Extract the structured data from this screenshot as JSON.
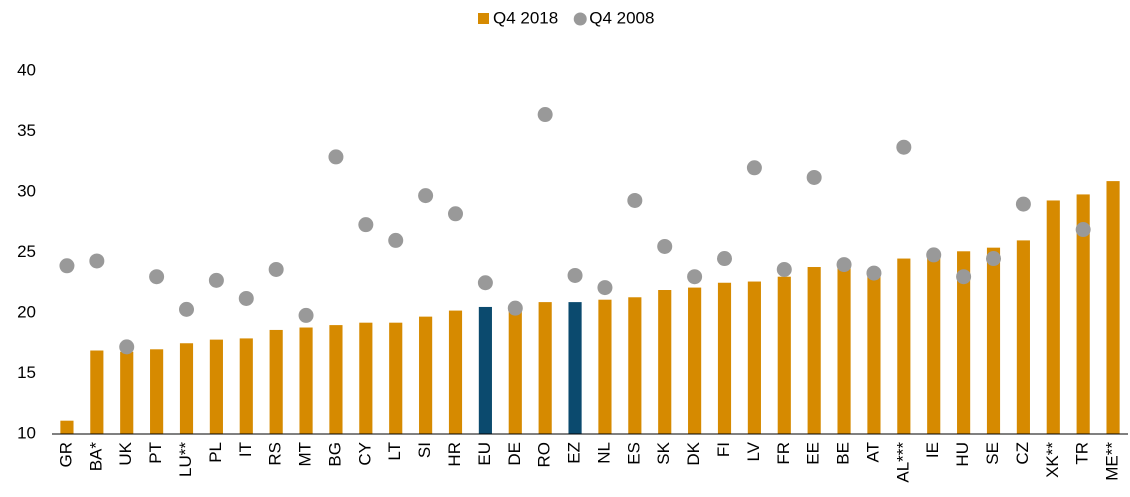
{
  "chart_data": {
    "type": "bar",
    "categories": [
      "GR",
      "BA*",
      "UK",
      "PT",
      "LU**",
      "PL",
      "IT",
      "RS",
      "MT",
      "BG",
      "CY",
      "LT",
      "SI",
      "HR",
      "EU",
      "DE",
      "RO",
      "EZ",
      "NL",
      "ES",
      "SK",
      "DK",
      "FI",
      "LV",
      "FR",
      "EE",
      "BE",
      "AT",
      "AL***",
      "IE",
      "HU",
      "SE",
      "CZ",
      "XK**",
      "TR",
      "ME**"
    ],
    "series": [
      {
        "name": "Q4 2018",
        "mark": "bar",
        "color": "#d68a00",
        "colors": [
          "#d68a00",
          "#d68a00",
          "#d68a00",
          "#d68a00",
          "#d68a00",
          "#d68a00",
          "#d68a00",
          "#d68a00",
          "#d68a00",
          "#d68a00",
          "#d68a00",
          "#d68a00",
          "#d68a00",
          "#d68a00",
          "#0b4a6e",
          "#d68a00",
          "#d68a00",
          "#0b4a6e",
          "#d68a00",
          "#d68a00",
          "#d68a00",
          "#d68a00",
          "#d68a00",
          "#d68a00",
          "#d68a00",
          "#d68a00",
          "#d68a00",
          "#d68a00",
          "#d68a00",
          "#d68a00",
          "#d68a00",
          "#d68a00",
          "#d68a00",
          "#d68a00",
          "#d68a00",
          "#d68a00"
        ],
        "values": [
          11.1,
          16.9,
          16.8,
          17.0,
          17.5,
          17.8,
          17.9,
          18.6,
          18.8,
          19.0,
          19.2,
          19.2,
          19.7,
          20.2,
          20.5,
          20.4,
          20.9,
          20.9,
          21.1,
          21.3,
          21.9,
          22.1,
          22.5,
          22.6,
          23.0,
          23.8,
          23.8,
          23.5,
          24.5,
          24.8,
          25.1,
          25.4,
          26.0,
          29.3,
          29.8,
          30.9
        ]
      },
      {
        "name": "Q4 2008",
        "mark": "dot",
        "color": "#999999",
        "values": [
          23.9,
          24.3,
          17.2,
          23.0,
          20.3,
          22.7,
          21.2,
          23.6,
          19.8,
          32.9,
          27.3,
          26.0,
          29.7,
          28.2,
          22.5,
          20.4,
          36.4,
          23.1,
          22.1,
          29.3,
          25.5,
          23.0,
          24.5,
          32.0,
          23.6,
          31.2,
          24.0,
          23.3,
          33.7,
          24.8,
          23.0,
          24.5,
          29.0,
          null,
          26.9,
          null
        ]
      }
    ],
    "ylim": [
      10,
      40
    ],
    "yticks": [
      10,
      15,
      20,
      25,
      30,
      35,
      40
    ],
    "grid": false,
    "legend": "top"
  }
}
